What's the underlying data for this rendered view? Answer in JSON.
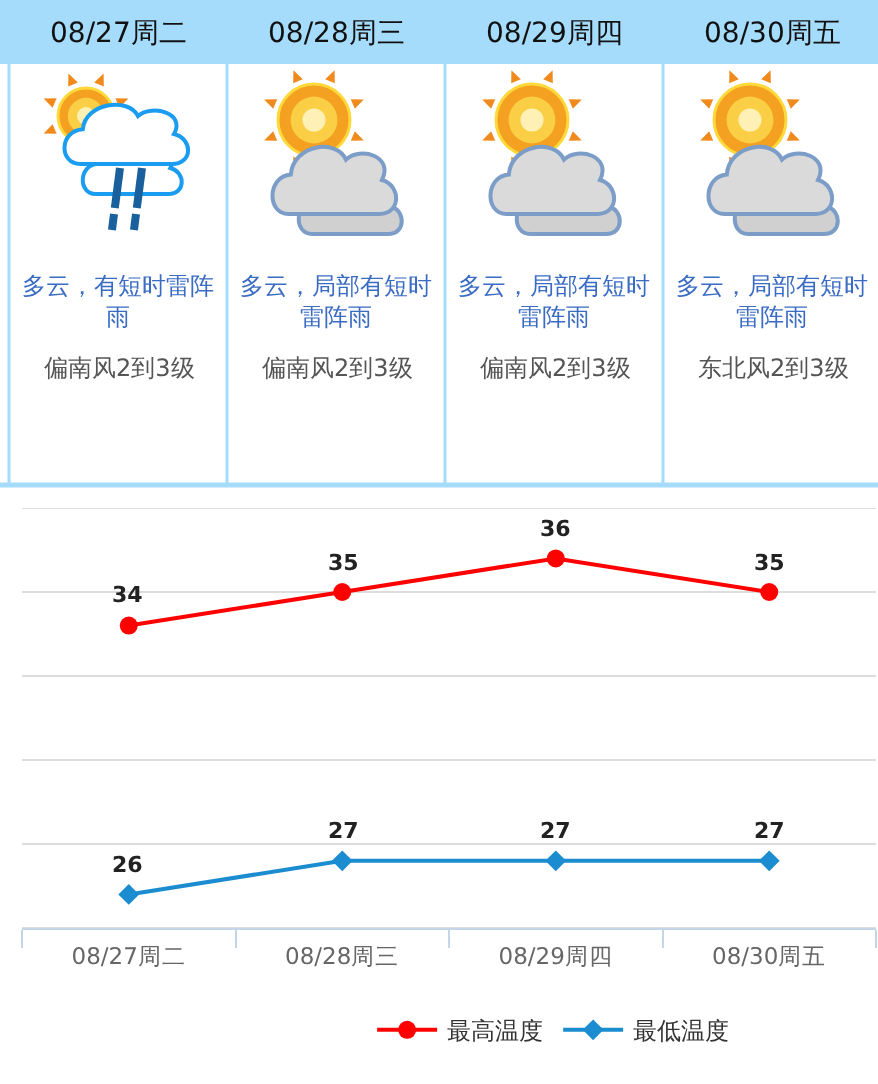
{
  "chart_data": [
    {
      "type": "other",
      "categories": [
        "08/27周二",
        "08/28周三",
        "08/29周四",
        "08/30周五"
      ],
      "annotations": [
        "多云，有短时雷阵雨",
        "多云，局部有短时雷阵雨",
        "多云，局部有短时雷阵雨",
        "多云，局部有短时雷阵雨",
        "偏南风2到3级",
        "偏南风2到3级",
        "偏南风2到3级",
        "东北风2到3级"
      ]
    },
    {
      "type": "line",
      "categories": [
        "08/27周二",
        "08/28周三",
        "08/29周四",
        "08/30周五"
      ],
      "series": [
        {
          "name": "最高温度",
          "color": "#ff0000",
          "values": [
            34,
            35,
            36,
            35
          ],
          "marker": "circle"
        },
        {
          "name": "最低温度",
          "color": "#1a8ccf",
          "values": [
            26,
            27,
            27,
            27
          ],
          "marker": "diamond"
        }
      ],
      "ylim": [
        25,
        37.5
      ],
      "yticks": [
        {
          "value": 25,
          "label": null
        },
        {
          "value": 27.5,
          "label": null
        },
        {
          "value": 30,
          "label": null
        },
        {
          "value": 32.5,
          "label": null
        },
        {
          "value": 35,
          "label": null
        },
        {
          "value": 37.5,
          "label": null
        }
      ],
      "grid": "y",
      "legend": "bottom",
      "tick_labels": "x",
      "data_labels": true,
      "line_style": "solid"
    }
  ]
}
